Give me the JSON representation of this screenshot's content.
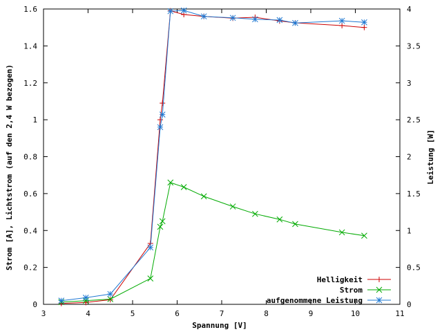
{
  "chart_data": {
    "type": "line",
    "title": "",
    "xlabel": "Spannung [V]",
    "ylabel": "Strom [A], Lichtstrom (auf den 2,4 W bezogen)",
    "y2label": "Leistung [W]",
    "xlim": [
      3,
      11
    ],
    "ylim": [
      0,
      1.6
    ],
    "y2lim": [
      0,
      4
    ],
    "xticks": [
      "3",
      "4",
      "5",
      "6",
      "7",
      "8",
      "9",
      "10",
      "11"
    ],
    "yticks": [
      "0",
      "0.2",
      "0.4",
      "0.6",
      "0.8",
      "1",
      "1.2",
      "1.4",
      "1.6"
    ],
    "y2ticks": [
      "0",
      "0.5",
      "1",
      "1.5",
      "2",
      "2.5",
      "3",
      "3.5",
      "4"
    ],
    "grid": false,
    "legend_position": "bottom-right",
    "series": [
      {
        "name": "Helligkeit",
        "color": "#cc0000",
        "marker": "plus",
        "axis": "left",
        "x": [
          3.4,
          3.95,
          4.5,
          5.4,
          5.62,
          5.67,
          5.85,
          6.15,
          6.6,
          7.25,
          7.75,
          8.3,
          8.65,
          9.7,
          10.2
        ],
        "y": [
          0.005,
          0.01,
          0.025,
          0.33,
          1.0,
          1.09,
          1.59,
          1.57,
          1.56,
          1.55,
          1.555,
          1.535,
          1.525,
          1.51,
          1.5
        ]
      },
      {
        "name": "Strom",
        "color": "#00aa00",
        "marker": "cross",
        "axis": "left",
        "x": [
          3.4,
          3.95,
          4.5,
          5.4,
          5.62,
          5.67,
          5.85,
          6.15,
          6.6,
          7.25,
          7.75,
          8.3,
          8.65,
          9.7,
          10.2
        ],
        "y": [
          0.012,
          0.02,
          0.028,
          0.14,
          0.42,
          0.45,
          0.66,
          0.635,
          0.585,
          0.53,
          0.49,
          0.46,
          0.435,
          0.39,
          0.372
        ]
      },
      {
        "name": "aufgenommene Leistung",
        "color": "#1e78d2",
        "marker": "star",
        "axis": "right",
        "x": [
          3.4,
          3.95,
          4.5,
          5.4,
          5.62,
          5.67,
          5.85,
          6.15,
          6.6,
          7.25,
          7.75,
          8.3,
          8.65,
          9.7,
          10.2
        ],
        "y": [
          0.05,
          0.09,
          0.14,
          0.77,
          2.4,
          2.57,
          3.97,
          3.98,
          3.9,
          3.88,
          3.86,
          3.85,
          3.81,
          3.84,
          3.82
        ]
      }
    ]
  }
}
